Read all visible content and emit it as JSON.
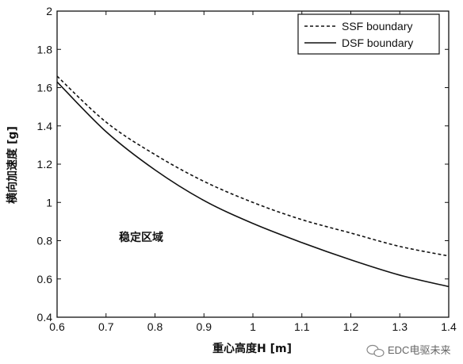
{
  "chart_data": {
    "type": "line",
    "xlabel": "重心高度H [m]",
    "ylabel": "横向加速度 [g]",
    "xlim": [
      0.6,
      1.4
    ],
    "ylim": [
      0.4,
      2
    ],
    "xticks": [
      "0.6",
      "0.7",
      "0.8",
      "0.9",
      "1",
      "1.1",
      "1.2",
      "1.3",
      "1.4"
    ],
    "yticks": [
      "0.4",
      "0.6",
      "0.8",
      "1",
      "1.2",
      "1.4",
      "1.6",
      "1.8",
      "2"
    ],
    "legend_position": "top-right",
    "grid": false,
    "annotation": "稳定区域",
    "series": [
      {
        "name": "SSF boundary",
        "style": "dashed",
        "color": "#111111",
        "x": [
          0.6,
          0.7,
          0.8,
          0.9,
          1.0,
          1.1,
          1.2,
          1.3,
          1.4
        ],
        "y": [
          1.66,
          1.42,
          1.25,
          1.11,
          1.0,
          0.91,
          0.84,
          0.77,
          0.72
        ]
      },
      {
        "name": "DSF boundary",
        "style": "solid",
        "color": "#111111",
        "x": [
          0.6,
          0.7,
          0.8,
          0.9,
          1.0,
          1.1,
          1.2,
          1.3,
          1.4
        ],
        "y": [
          1.63,
          1.37,
          1.17,
          1.01,
          0.89,
          0.79,
          0.7,
          0.62,
          0.56
        ]
      }
    ]
  },
  "watermark": {
    "text": "EDC电驱未来",
    "icon": "wechat-icon"
  }
}
